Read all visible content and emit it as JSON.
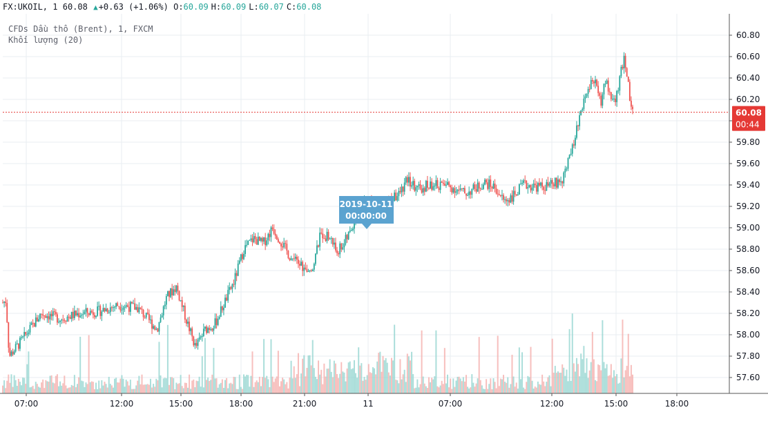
{
  "header": {
    "symbol": "FX:UKOIL",
    "interval": "1",
    "last": "60.08",
    "change": "+0.63",
    "change_pct": "(+1.06%)",
    "open_label": "O:",
    "open": "60.09",
    "high_label": "H:",
    "high": "60.09",
    "low_label": "L:",
    "low": "60.07",
    "close_label": "C:",
    "close": "60.08"
  },
  "legend": {
    "main": "CFDs Dầu thô (Brent), 1, FXCM",
    "volume": "Khối lượng (20)"
  },
  "colors": {
    "up": "#26a69a",
    "down": "#ef5350",
    "up_volume": "#8fd3cd",
    "down_volume": "#f4a9a7",
    "price_line": "#e53935",
    "tooltip": "#5ba3d0",
    "grid": "#e9edf2"
  },
  "price_badge": {
    "value": "60.08",
    "countdown": "00:44"
  },
  "tooltip": {
    "date": "2019-10-11",
    "time": "00:00:00"
  },
  "chart_data": {
    "type": "candlestick",
    "y_ticks": [
      "60.80",
      "60.60",
      "60.40",
      "60.20",
      "60.00",
      "59.80",
      "59.60",
      "59.40",
      "59.20",
      "59.00",
      "58.80",
      "58.60",
      "58.40",
      "58.20",
      "58.00",
      "57.80",
      "57.60"
    ],
    "x_ticks": [
      "07:00",
      "12:00",
      "15:00",
      "18:00",
      "21:00",
      "11",
      "07:00",
      "12:00",
      "15:00",
      "18:00"
    ],
    "ylim": [
      57.45,
      60.95
    ],
    "last_price": 60.08,
    "grid": true,
    "price_path": [
      [
        "07:00",
        58.3
      ],
      [
        "07:10",
        58.32
      ],
      [
        "07:20",
        57.8
      ],
      [
        "08:00",
        57.95
      ],
      [
        "09:00",
        58.2
      ],
      [
        "10:00",
        58.15
      ],
      [
        "11:00",
        58.2
      ],
      [
        "12:00",
        58.22
      ],
      [
        "13:00",
        58.28
      ],
      [
        "14:00",
        58.25
      ],
      [
        "15:00",
        58.05
      ],
      [
        "15:30",
        58.35
      ],
      [
        "16:00",
        58.45
      ],
      [
        "16:30",
        58.15
      ],
      [
        "17:00",
        57.88
      ],
      [
        "17:30",
        58.05
      ],
      [
        "18:00",
        58.1
      ],
      [
        "18:30",
        58.3
      ],
      [
        "19:00",
        58.5
      ],
      [
        "19:30",
        58.8
      ],
      [
        "20:00",
        58.9
      ],
      [
        "20:30",
        58.85
      ],
      [
        "21:00",
        59.0
      ],
      [
        "21:30",
        58.85
      ],
      [
        "22:00",
        58.7
      ],
      [
        "22:30",
        58.65
      ],
      [
        "22:50",
        58.55
      ],
      [
        "23:10",
        58.7
      ],
      [
        "23:30",
        58.95
      ],
      [
        "00:00",
        58.9
      ],
      [
        "00:20",
        58.78
      ],
      [
        "00:40",
        58.85
      ],
      [
        "01:00",
        58.95
      ],
      [
        "01:30",
        59.2
      ],
      [
        "02:00",
        59.25
      ],
      [
        "02:30",
        59.2
      ],
      [
        "03:00",
        59.25
      ],
      [
        "03:30",
        59.3
      ],
      [
        "04:00",
        59.45
      ],
      [
        "04:30",
        59.35
      ],
      [
        "05:00",
        59.4
      ],
      [
        "06:00",
        59.4
      ],
      [
        "07:00",
        59.32
      ],
      [
        "08:00",
        59.42
      ],
      [
        "08:30",
        59.38
      ],
      [
        "09:00",
        59.25
      ],
      [
        "09:30",
        59.3
      ],
      [
        "10:00",
        59.4
      ],
      [
        "11:00",
        59.38
      ],
      [
        "11:30",
        59.4
      ],
      [
        "12:00",
        59.45
      ],
      [
        "12:30",
        59.7
      ],
      [
        "13:00",
        60.1
      ],
      [
        "13:30",
        60.35
      ],
      [
        "13:45",
        60.4
      ],
      [
        "14:00",
        60.15
      ],
      [
        "14:15",
        60.38
      ],
      [
        "14:30",
        60.25
      ],
      [
        "14:45",
        60.15
      ],
      [
        "15:00",
        60.4
      ],
      [
        "15:15",
        60.6
      ],
      [
        "15:30",
        60.25
      ],
      [
        "15:40",
        60.08
      ]
    ],
    "volume": "volume bars under the price series; darker/larger spikes around the session opens and near 15:00"
  }
}
